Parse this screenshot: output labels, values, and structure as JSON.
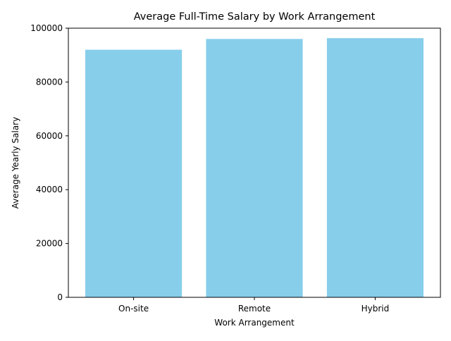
{
  "chart_data": {
    "type": "bar",
    "title": "Average Full-Time Salary by Work Arrangement",
    "xlabel": "Work Arrangement",
    "ylabel": "Average Yearly Salary",
    "categories": [
      "On-site",
      "Remote",
      "Hybrid"
    ],
    "values": [
      92000,
      96000,
      96300
    ],
    "ylim": [
      0,
      100000
    ],
    "yticks": [
      0,
      20000,
      40000,
      60000,
      80000,
      100000
    ],
    "ytick_labels": [
      "0",
      "20000",
      "40000",
      "60000",
      "80000",
      "100000"
    ],
    "bar_color": "#87CEEB",
    "grid": false,
    "legend": "none"
  }
}
